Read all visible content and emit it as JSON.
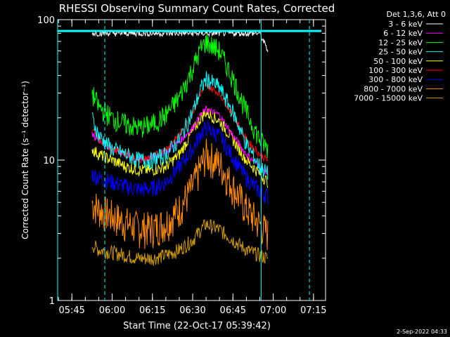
{
  "chart_data": {
    "type": "line",
    "title": "RHESSI Observing Summary Count Rates, Corrected",
    "xlabel": "Start Time (22-Oct-17 05:39:42)",
    "ylabel": "Corrected Count Rate (s⁻¹ detector⁻¹)",
    "yscale": "log",
    "ylim": [
      1,
      100
    ],
    "xlim": [
      "05:39:42",
      "07:19:30"
    ],
    "x_ticks": [
      "05:45",
      "06:00",
      "06:15",
      "06:30",
      "06:45",
      "07:00",
      "07:15"
    ],
    "y_ticks": [
      "1",
      "10",
      "100"
    ],
    "grid": false,
    "legend_position": "top-right",
    "legend_header": "Det 1,3,6, Att 0",
    "footer_date": "2-Sep-2022 04:33",
    "vlines": [
      {
        "time": "05:39:42",
        "color": "#00ffff",
        "style": "solid"
      },
      {
        "time": "05:57:15",
        "color": "#00ffff",
        "style": "dashed"
      },
      {
        "time": "06:55:30",
        "color": "#00ffff",
        "style": "solid"
      },
      {
        "time": "07:13:30",
        "color": "#00ffff",
        "style": "dashed"
      }
    ],
    "hline": {
      "value": 83,
      "color": "#00ffff"
    },
    "x_knots_min_after_0545": [
      7.5,
      10,
      15,
      20,
      25,
      30,
      35,
      40,
      45,
      48,
      50,
      55,
      60,
      65,
      70,
      73
    ],
    "series": [
      {
        "name": "3 - 6 keV",
        "color": "#ffffff",
        "values": [
          80,
          80,
          80,
          80,
          80,
          80,
          80,
          80,
          80,
          80,
          80,
          80,
          80,
          80,
          80,
          60
        ]
      },
      {
        "name": "6 - 12 keV",
        "color": "#ff00ff",
        "values": [
          15,
          14,
          12,
          11,
          10,
          10.5,
          11.5,
          13.5,
          17,
          21,
          23,
          21,
          15,
          11,
          9,
          8
        ]
      },
      {
        "name": "12 - 25 keV",
        "color": "#00ff00",
        "values": [
          30,
          24,
          20,
          18,
          17,
          18,
          21,
          28,
          45,
          62,
          70,
          60,
          38,
          22,
          14,
          12
        ]
      },
      {
        "name": "25 - 50 keV",
        "color": "#00ffff",
        "values": [
          20,
          15,
          12,
          11,
          10,
          10,
          11,
          14,
          22,
          32,
          38,
          33,
          22,
          13,
          9,
          8
        ]
      },
      {
        "name": "50 - 100 keV",
        "color": "#ffff00",
        "values": [
          12,
          11,
          10,
          9,
          8.5,
          8.5,
          9,
          11,
          16,
          20,
          22,
          19,
          14,
          10,
          8,
          7
        ]
      },
      {
        "name": "100 - 300 keV",
        "color": "#ff0000",
        "values": [
          17,
          14,
          12,
          11,
          10,
          10.5,
          12,
          15,
          22,
          30,
          34,
          30,
          21,
          14,
          11,
          10
        ]
      },
      {
        "name": "300 - 800 keV",
        "color": "#0000ff",
        "values": [
          8,
          7.5,
          7,
          6.5,
          6.2,
          6.3,
          7,
          9,
          12,
          15.5,
          17,
          15,
          10.5,
          7.5,
          6,
          5.5
        ]
      },
      {
        "name": "800 - 7000 keV",
        "color": "#ff8c00",
        "values": [
          5,
          4.5,
          4,
          3.6,
          3.3,
          3.3,
          3.6,
          4.5,
          6.5,
          9,
          11,
          9.5,
          6.5,
          4.5,
          3.5,
          3
        ]
      },
      {
        "name": "7000 - 15000 keV",
        "color": "#cc9900",
        "values": [
          2.5,
          2.3,
          2.2,
          2.1,
          2.0,
          2.0,
          2.1,
          2.3,
          2.7,
          3.2,
          3.5,
          3.2,
          2.7,
          2.3,
          2.1,
          2.0
        ]
      }
    ]
  }
}
